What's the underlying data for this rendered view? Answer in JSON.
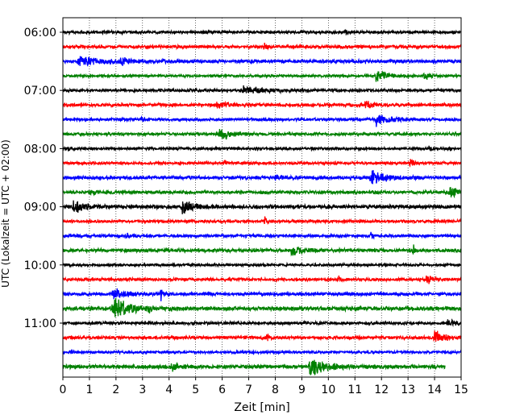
{
  "chart_data": {
    "type": "line",
    "title": "",
    "xlabel": "Zeit  [min]",
    "ylabel": "UTC (Lokalzeit = UTC + 02:00)",
    "xlim": [
      0,
      15
    ],
    "x_ticks": [
      0,
      1,
      2,
      3,
      4,
      5,
      6,
      7,
      8,
      9,
      10,
      11,
      12,
      13,
      14,
      15
    ],
    "x_tick_labels": [
      "0",
      "1",
      "2",
      "3",
      "4",
      "5",
      "6",
      "7",
      "8",
      "9",
      "10",
      "11",
      "12",
      "13",
      "14",
      "15"
    ],
    "y_tick_labels": [
      "06:00",
      "07:00",
      "08:00",
      "09:00",
      "10:00",
      "11:00"
    ],
    "trace_interval_minutes": 15,
    "grid": "vertical dotted lines at each minute",
    "color_cycle": [
      "#000000",
      "#ff0000",
      "#0000ff",
      "#008000"
    ],
    "traces": [
      {
        "start": "06:00",
        "color": "#000000",
        "noise": 0.9,
        "events": [
          [
            10.65,
            2.2,
            0.05
          ]
        ]
      },
      {
        "start": "06:15",
        "color": "#ff0000",
        "noise": 1.0,
        "events": [
          [
            7.6,
            2.8,
            0.05
          ]
        ]
      },
      {
        "start": "06:30",
        "color": "#0000ff",
        "noise": 1.1,
        "events": [
          [
            0.6,
            2.6,
            0.9
          ],
          [
            2.2,
            1.8,
            0.3
          ]
        ]
      },
      {
        "start": "06:45",
        "color": "#008000",
        "noise": 0.8,
        "events": [
          [
            11.8,
            3.5,
            0.35
          ],
          [
            13.6,
            3.0,
            0.15
          ]
        ]
      },
      {
        "start": "07:00",
        "color": "#000000",
        "noise": 0.9,
        "events": [
          [
            6.8,
            2.2,
            0.8
          ]
        ]
      },
      {
        "start": "07:15",
        "color": "#ff0000",
        "noise": 1.0,
        "events": [
          [
            11.4,
            3.2,
            0.2
          ],
          [
            5.8,
            1.6,
            0.4
          ]
        ]
      },
      {
        "start": "07:30",
        "color": "#0000ff",
        "noise": 0.9,
        "events": [
          [
            3.0,
            2.2,
            0.05
          ],
          [
            11.8,
            4.0,
            0.5
          ]
        ]
      },
      {
        "start": "07:45",
        "color": "#008000",
        "noise": 0.9,
        "events": [
          [
            5.9,
            3.3,
            0.45
          ]
        ]
      },
      {
        "start": "08:00",
        "color": "#000000",
        "noise": 0.8,
        "events": [
          [
            0.2,
            1.6,
            0.1
          ],
          [
            13.8,
            1.5,
            0.1
          ]
        ]
      },
      {
        "start": "08:15",
        "color": "#ff0000",
        "noise": 0.8,
        "events": [
          [
            6.1,
            3.2,
            0.05
          ],
          [
            13.1,
            3.0,
            0.1
          ]
        ]
      },
      {
        "start": "08:30",
        "color": "#0000ff",
        "noise": 1.1,
        "events": [
          [
            8.0,
            2.0,
            0.2
          ],
          [
            11.6,
            4.0,
            0.5
          ]
        ]
      },
      {
        "start": "08:45",
        "color": "#008000",
        "noise": 1.0,
        "events": [
          [
            14.6,
            4.0,
            0.3
          ],
          [
            1.0,
            1.4,
            0.3
          ]
        ]
      },
      {
        "start": "09:00",
        "color": "#000000",
        "noise": 1.2,
        "events": [
          [
            0.4,
            4.0,
            0.3
          ],
          [
            4.5,
            4.5,
            0.35
          ]
        ]
      },
      {
        "start": "09:15",
        "color": "#ff0000",
        "noise": 0.9,
        "events": [
          [
            7.6,
            2.5,
            0.1
          ]
        ]
      },
      {
        "start": "09:30",
        "color": "#0000ff",
        "noise": 0.9,
        "events": [
          [
            11.6,
            4.5,
            0.05
          ],
          [
            2.4,
            1.8,
            0.1
          ]
        ]
      },
      {
        "start": "09:45",
        "color": "#008000",
        "noise": 1.1,
        "events": [
          [
            8.6,
            3.0,
            0.4
          ],
          [
            13.2,
            3.5,
            0.05
          ]
        ]
      },
      {
        "start": "10:00",
        "color": "#000000",
        "noise": 0.8,
        "events": []
      },
      {
        "start": "10:15",
        "color": "#ff0000",
        "noise": 0.9,
        "events": [
          [
            10.4,
            2.5,
            0.05
          ],
          [
            13.7,
            3.0,
            0.2
          ]
        ]
      },
      {
        "start": "10:30",
        "color": "#0000ff",
        "noise": 1.0,
        "events": [
          [
            1.9,
            3.8,
            0.4
          ],
          [
            3.7,
            3.5,
            0.1
          ]
        ]
      },
      {
        "start": "10:45",
        "color": "#008000",
        "noise": 1.3,
        "events": [
          [
            1.9,
            7.0,
            0.5
          ],
          [
            3.2,
            2.5,
            0.1
          ]
        ]
      },
      {
        "start": "11:00",
        "color": "#000000",
        "noise": 0.9,
        "events": [
          [
            14.5,
            1.6,
            0.4
          ]
        ]
      },
      {
        "start": "11:15",
        "color": "#ff0000",
        "noise": 1.0,
        "events": [
          [
            14.0,
            4.5,
            0.3
          ],
          [
            7.7,
            2.0,
            0.1
          ]
        ]
      },
      {
        "start": "11:30",
        "color": "#0000ff",
        "noise": 0.8,
        "events": [
          [
            0.3,
            2.0,
            0.1
          ]
        ]
      },
      {
        "start": "11:45",
        "color": "#008000",
        "noise": 1.2,
        "events": [
          [
            9.3,
            6.5,
            0.5
          ],
          [
            4.1,
            2.0,
            0.2
          ]
        ],
        "x_end": 14.4
      }
    ]
  }
}
